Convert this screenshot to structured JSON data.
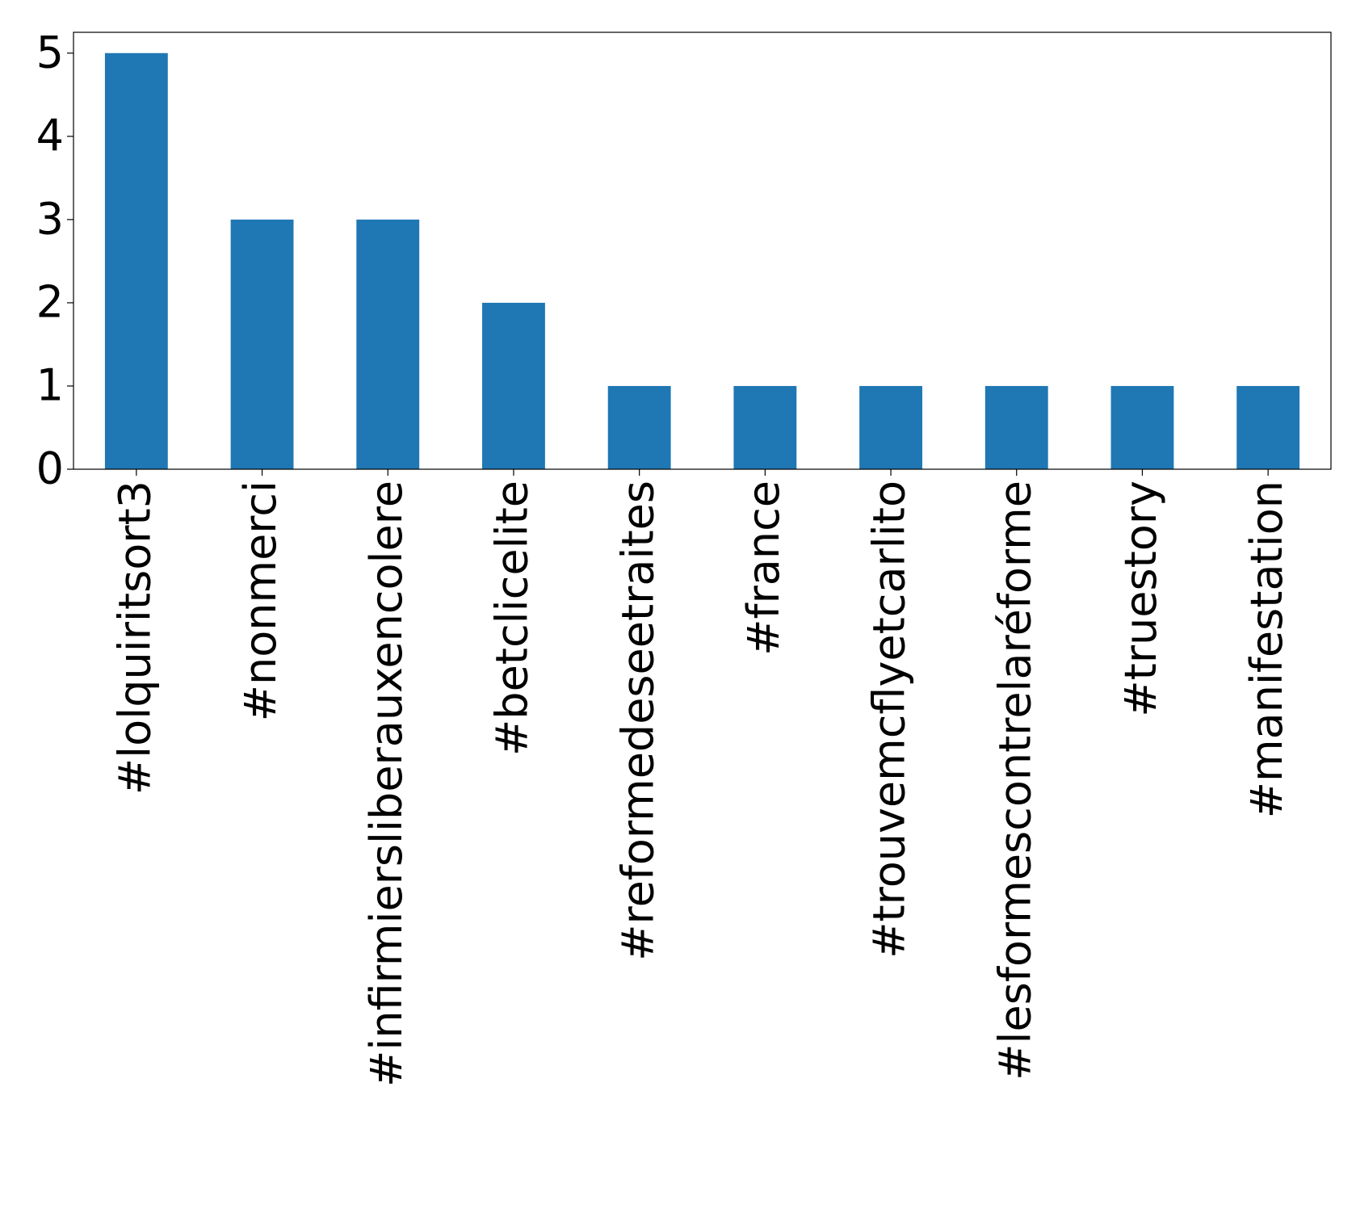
{
  "chart_data": {
    "type": "bar",
    "categories": [
      "#lolquiritsort3",
      "#nonmerci",
      "#infirmiersliberauxencolere",
      "#betclicelite",
      "#reformedeseetraites",
      "#france",
      "#trouvemcflyetcarlito",
      "#lesformescontrelaréforme",
      "#truestory",
      "#manifestation"
    ],
    "values": [
      5,
      3,
      3,
      2,
      1,
      1,
      1,
      1,
      1,
      1
    ],
    "color": "#1f77b4",
    "ylim": [
      0,
      5.25
    ],
    "yticks": [
      0,
      1,
      2,
      3,
      4,
      5
    ],
    "grid": false
  }
}
